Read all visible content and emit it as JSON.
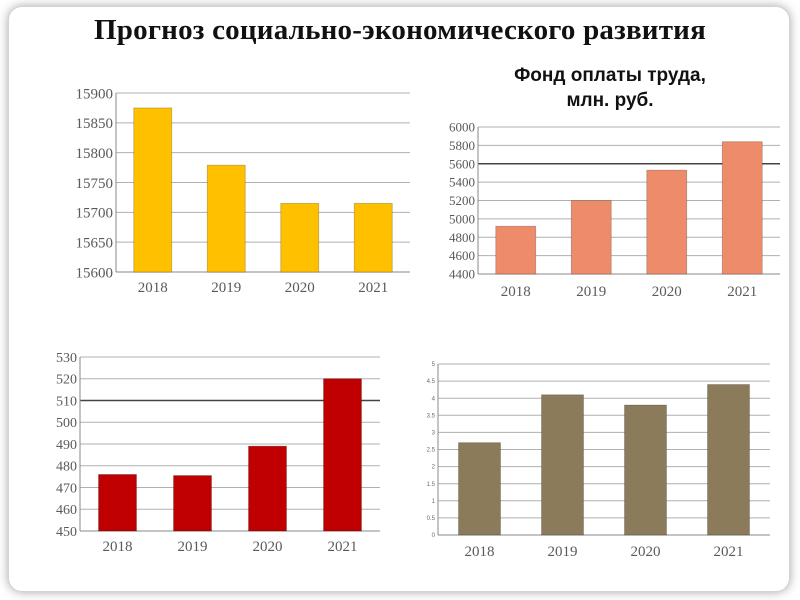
{
  "page": {
    "title": "Прогноз социально-экономического развития"
  },
  "chart_data": [
    {
      "type": "bar",
      "title": "",
      "categories": [
        "2018",
        "2019",
        "2020",
        "2021"
      ],
      "values": [
        15875,
        15779,
        15715,
        15715
      ],
      "ylim": [
        15600,
        15900
      ],
      "yticks": [
        15600,
        15650,
        15700,
        15750,
        15800,
        15850,
        15900
      ],
      "grid": true,
      "color": "#FFC000"
    },
    {
      "type": "bar",
      "title": "Фонд оплаты труда, млн. руб.",
      "title_lines": [
        "Фонд оплаты труда,",
        "млн. руб."
      ],
      "categories": [
        "2018",
        "2019",
        "2020",
        "2021"
      ],
      "values": [
        4920,
        5200,
        5530,
        5840
      ],
      "ylim": [
        4400,
        6000
      ],
      "yticks": [
        4400,
        4600,
        4800,
        5000,
        5200,
        5400,
        5600,
        5800,
        6000
      ],
      "grid": true,
      "color": "#EE8B6B"
    },
    {
      "type": "bar",
      "title": "",
      "categories": [
        "2018",
        "2019",
        "2020",
        "2021"
      ],
      "values": [
        476,
        475.5,
        489,
        520
      ],
      "ylim": [
        450,
        530
      ],
      "yticks": [
        450,
        460,
        470,
        480,
        490,
        500,
        510,
        520,
        530
      ],
      "grid": true,
      "color": "#C00000"
    },
    {
      "type": "bar",
      "title": "",
      "categories": [
        "2018",
        "2019",
        "2020",
        "2021"
      ],
      "values": [
        2.7,
        4.1,
        3.8,
        4.4
      ],
      "ylim": [
        0,
        5
      ],
      "yticks": [
        0,
        0.5,
        1,
        1.5,
        2,
        2.5,
        3,
        3.5,
        4,
        4.5,
        5
      ],
      "grid": true,
      "color": "#8B7B5B"
    }
  ]
}
